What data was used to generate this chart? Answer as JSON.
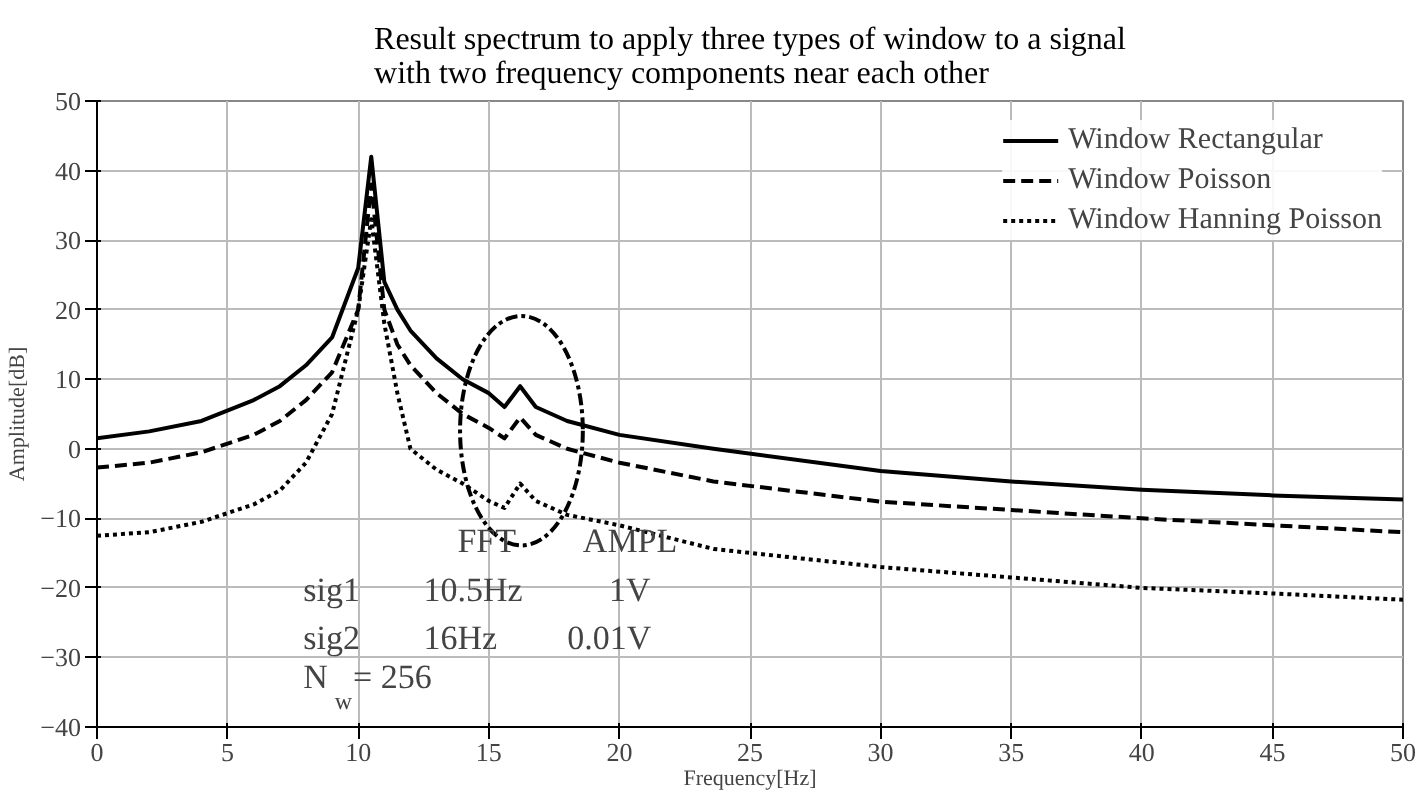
{
  "chart_data": {
    "type": "line",
    "title": "Result spectrum to apply three types of window to a signal\nwith two frequency components near each other",
    "xlabel": "Frequency[Hz]",
    "ylabel": "Amplitude[dB]",
    "xlim": [
      0,
      50
    ],
    "ylim": [
      -40,
      50
    ],
    "xticks": [
      0,
      5,
      10,
      15,
      20,
      25,
      30,
      35,
      40,
      45,
      50
    ],
    "yticks": [
      -40,
      -30,
      -20,
      -10,
      0,
      10,
      20,
      30,
      40,
      50
    ],
    "grid": true,
    "legend": "top right",
    "marker": "none",
    "x": [
      0,
      2,
      4,
      6,
      7,
      8,
      9,
      10,
      10.5,
      11,
      11.5,
      12,
      13,
      14,
      15,
      15.6,
      16.2,
      16.8,
      18,
      20,
      23.6,
      30,
      35,
      40,
      45,
      50
    ],
    "series": [
      {
        "name": "Window Rectangular",
        "color": "#000000",
        "line_style": "solid",
        "values": [
          1.5,
          2.5,
          4,
          7,
          9,
          12,
          16,
          26,
          42,
          24,
          20,
          17,
          13,
          10,
          8,
          6,
          9,
          6,
          4,
          2,
          0,
          -3.2,
          -4.7,
          -5.9,
          -6.7,
          -7.3
        ]
      },
      {
        "name": "Window Poisson",
        "color": "#000000",
        "line_style": "dashed",
        "values": [
          -2.7,
          -2,
          -0.5,
          2,
          4,
          7,
          11,
          20,
          38,
          20,
          15,
          12,
          8,
          5,
          3,
          1.5,
          4.5,
          2,
          0,
          -2,
          -4.7,
          -7.6,
          -8.8,
          -10,
          -11,
          -12
        ]
      },
      {
        "name": "Window Hanning Poisson",
        "color": "#000000",
        "line_style": "dotted",
        "values": [
          -12.5,
          -12,
          -10.5,
          -8,
          -6,
          -2,
          5,
          20,
          33,
          18,
          8,
          0,
          -3,
          -5,
          -7.5,
          -8.5,
          -5,
          -7.5,
          -9.5,
          -11,
          -14.4,
          -17,
          -18.5,
          -20,
          -20.8,
          -21.7
        ]
      }
    ],
    "annotations": [
      "FFT",
      "AMPL",
      "sig1",
      "10.5Hz",
      "1V",
      "sig2",
      "16Hz",
      "0.01V",
      "N$_{w}$ = 256"
    ]
  }
}
